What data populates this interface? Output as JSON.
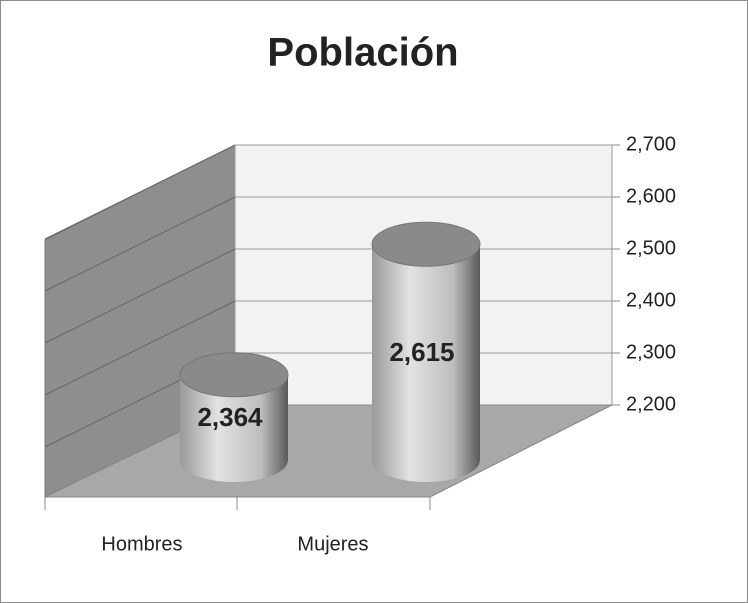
{
  "chart_data": {
    "type": "bar3d",
    "title": "Población",
    "categories": [
      "Hombres",
      "Mujeres"
    ],
    "values": [
      2364,
      2615
    ],
    "value_labels": [
      "2,364",
      "2,615"
    ],
    "ylim": [
      2200,
      2700
    ],
    "yticks": [
      {
        "value": 2200,
        "label": "2,200"
      },
      {
        "value": 2300,
        "label": "2,300"
      },
      {
        "value": 2400,
        "label": "2,400"
      },
      {
        "value": 2500,
        "label": "2,500"
      },
      {
        "value": 2600,
        "label": "2,600"
      },
      {
        "value": 2700,
        "label": "2,700"
      }
    ],
    "grid": true
  }
}
